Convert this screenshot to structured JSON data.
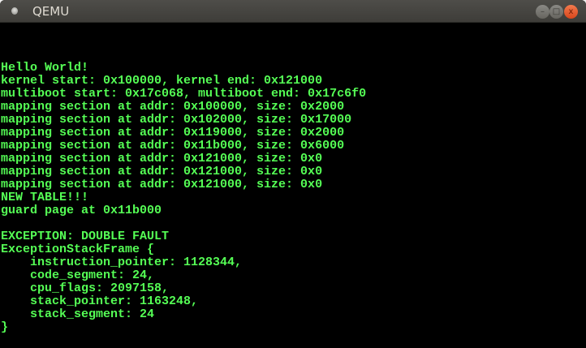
{
  "window": {
    "title": "QEMU"
  },
  "console": {
    "lines": [
      "Hello World!",
      "kernel start: 0x100000, kernel end: 0x121000",
      "multiboot start: 0x17c068, multiboot end: 0x17c6f0",
      "mapping section at addr: 0x100000, size: 0x2000",
      "mapping section at addr: 0x102000, size: 0x17000",
      "mapping section at addr: 0x119000, size: 0x2000",
      "mapping section at addr: 0x11b000, size: 0x6000",
      "mapping section at addr: 0x121000, size: 0x0",
      "mapping section at addr: 0x121000, size: 0x0",
      "mapping section at addr: 0x121000, size: 0x0",
      "NEW TABLE!!!",
      "guard page at 0x11b000",
      "",
      "EXCEPTION: DOUBLE FAULT",
      "ExceptionStackFrame {",
      "    instruction_pointer: 1128344,",
      "    code_segment: 24,",
      "    cpu_flags: 2097158,",
      "    stack_pointer: 1163248,",
      "    stack_segment: 24",
      "}"
    ],
    "text_color": "#55ff55",
    "background": "#000000"
  }
}
